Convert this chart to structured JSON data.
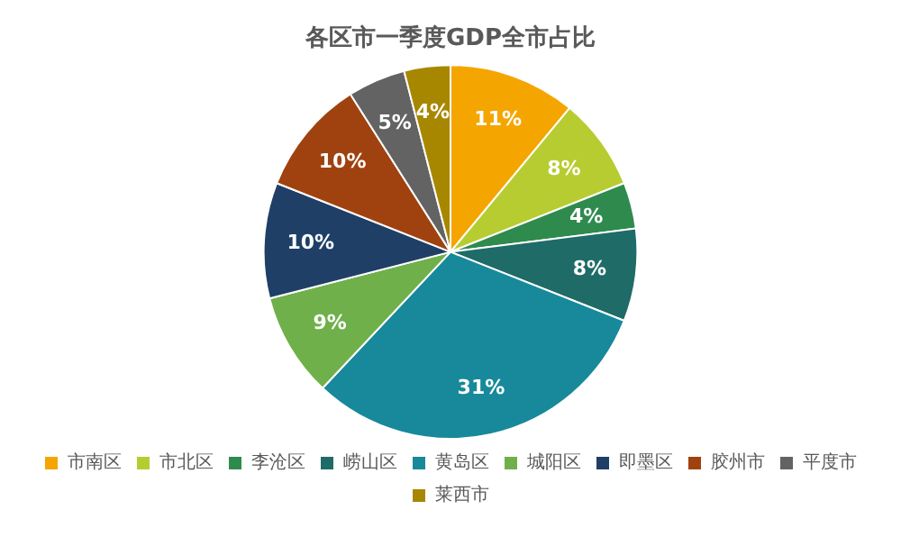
{
  "chart_data": {
    "type": "pie",
    "title": "各区市一季度GDP全市占比",
    "categories": [
      "市南区",
      "市北区",
      "李沧区",
      "崂山区",
      "黄岛区",
      "城阳区",
      "即墨区",
      "胶州市",
      "平度市",
      "莱西市"
    ],
    "values": [
      11,
      8,
      4,
      8,
      31,
      9,
      10,
      10,
      5,
      4
    ],
    "value_labels": [
      "11%",
      "8%",
      "4%",
      "8%",
      "31%",
      "9%",
      "10%",
      "10%",
      "5%",
      "4%"
    ],
    "colors": [
      "#f5a500",
      "#b7cc30",
      "#2f8a4e",
      "#1f6b68",
      "#17899a",
      "#6fb04a",
      "#1f3f66",
      "#a0420f",
      "#636363",
      "#a88700"
    ],
    "legend": "bottom"
  }
}
